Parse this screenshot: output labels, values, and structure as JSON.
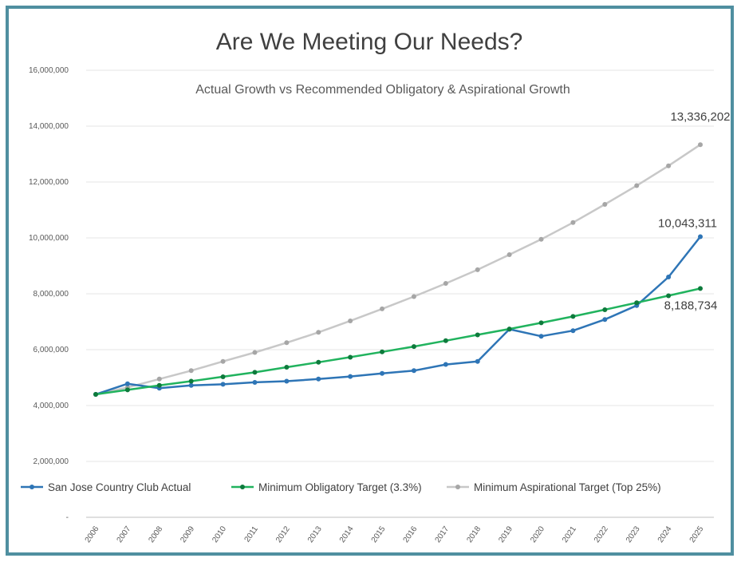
{
  "chart_data": {
    "type": "line",
    "title": "Are We Meeting Our Needs?",
    "subtitle": "Actual Growth vs Recommended Obligatory & Aspirational Growth",
    "xlabel": "",
    "ylabel": "",
    "ylim": [
      0,
      16000000
    ],
    "yticks": [
      {
        "value": 0,
        "label": "-"
      },
      {
        "value": 2000000,
        "label": "2,000,000"
      },
      {
        "value": 4000000,
        "label": "4,000,000"
      },
      {
        "value": 6000000,
        "label": "6,000,000"
      },
      {
        "value": 8000000,
        "label": "8,000,000"
      },
      {
        "value": 10000000,
        "label": "10,000,000"
      },
      {
        "value": 12000000,
        "label": "12,000,000"
      },
      {
        "value": 14000000,
        "label": "14,000,000"
      },
      {
        "value": 16000000,
        "label": "16,000,000"
      }
    ],
    "categories": [
      "2006",
      "2007",
      "2008",
      "2009",
      "2010",
      "2011",
      "2012",
      "2013",
      "2014",
      "2015",
      "2016",
      "2017",
      "2018",
      "2019",
      "2020",
      "2021",
      "2022",
      "2023",
      "2024",
      "2025"
    ],
    "grid": true,
    "legend_position": "bottom",
    "series": [
      {
        "name": "Minimum Aspirational Target (Top 25%)",
        "color": "#c8c8c8",
        "marker_color": "#a6a6a6",
        "values": [
          4400000,
          4650000,
          4950000,
          5250000,
          5580000,
          5900000,
          6250000,
          6620000,
          7030000,
          7460000,
          7900000,
          8370000,
          8860000,
          9400000,
          9950000,
          10550000,
          11200000,
          11870000,
          12580000,
          13336202
        ],
        "end_label": "13,336,202"
      },
      {
        "name": "San Jose Country Club Actual",
        "color": "#2e75b6",
        "marker_color": "#2e75b6",
        "values": [
          4400000,
          4780000,
          4620000,
          4720000,
          4760000,
          4830000,
          4870000,
          4950000,
          5040000,
          5150000,
          5250000,
          5470000,
          5580000,
          6730000,
          6480000,
          6680000,
          7080000,
          7580000,
          8600000,
          10043311
        ],
        "end_label": "10,043,311"
      },
      {
        "name": "Minimum Obligatory Target (3.3%)",
        "color": "#21b35e",
        "marker_color": "#0e7a3c",
        "values": [
          4400000,
          4560000,
          4720000,
          4870000,
          5030000,
          5190000,
          5370000,
          5550000,
          5730000,
          5920000,
          6110000,
          6320000,
          6530000,
          6740000,
          6960000,
          7190000,
          7430000,
          7680000,
          7930000,
          8188734
        ],
        "end_label": "8,188,734"
      }
    ]
  }
}
